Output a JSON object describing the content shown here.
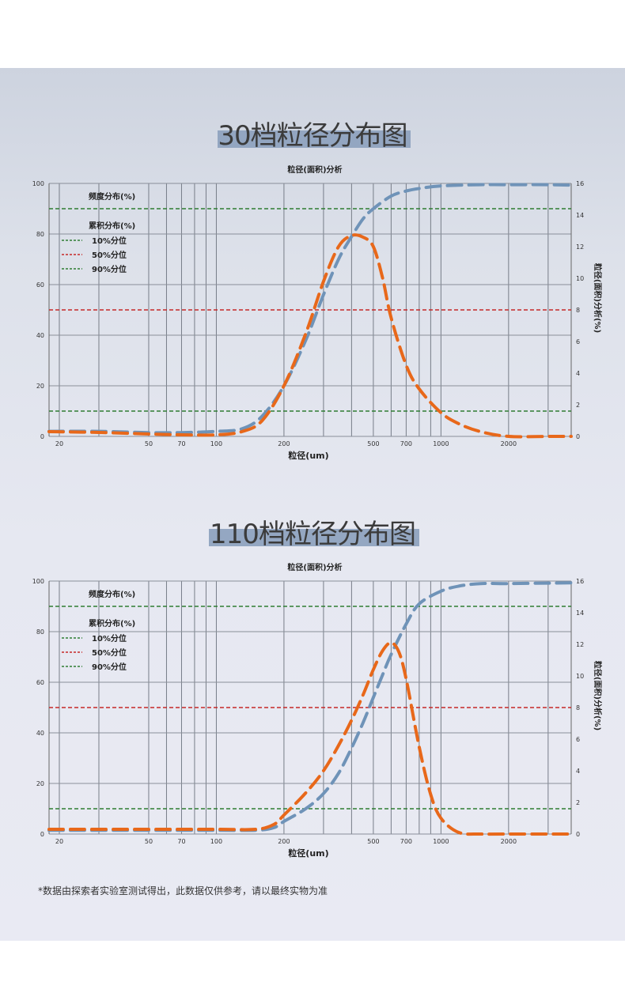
{
  "sections": [
    {
      "title": "30档粒径分布图",
      "chart_data": {
        "type": "line",
        "title": "粒径(面积)分析",
        "xlabel": "粒径(um)",
        "ylabel_right": "粒径(面积)分析(%)",
        "x_scale": "log",
        "x_range": [
          18,
          3800
        ],
        "x_ticks": [
          20,
          50,
          70,
          100,
          200,
          500,
          700,
          1000,
          2000
        ],
        "x_gridlines": [
          20,
          30,
          50,
          60,
          70,
          80,
          90,
          100,
          200,
          300,
          400,
          500,
          600,
          700,
          800,
          900,
          1000,
          2000,
          3000
        ],
        "y_left_ticks": [
          0,
          20,
          40,
          60,
          80,
          100
        ],
        "y_left_range": [
          0,
          100
        ],
        "y_right_ticks": [
          0,
          2,
          4,
          6,
          8,
          10,
          12,
          14,
          16
        ],
        "y_right_range": [
          0,
          16
        ],
        "grid": true,
        "legend": {
          "heading1": "频度分布(%)",
          "heading2": "累积分布(%)",
          "items": [
            {
              "label": "10%分位",
              "color": "#2e7d32"
            },
            {
              "label": "50%分位",
              "color": "#c62828"
            },
            {
              "label": "90%分位",
              "color": "#2e7d32"
            }
          ]
        },
        "reference_lines": [
          {
            "label": "10%分位",
            "y": 10,
            "color": "#2e7d32"
          },
          {
            "label": "50%分位",
            "y": 50,
            "color": "#c62828"
          },
          {
            "label": "90%分位",
            "y": 90,
            "color": "#2e7d32"
          }
        ],
        "series": [
          {
            "axis": "left",
            "color": "#6f93b8",
            "x": [
              18,
              30,
              50,
              70,
              100,
              130,
              160,
              200,
              250,
              300,
              350,
              400,
              450,
              500,
              600,
              700,
              800,
              1000,
              1500,
              2000,
              3000,
              3800
            ],
            "y": [
              2,
              2,
              1.5,
              1.5,
              2,
              3,
              8,
              20,
              38,
              56,
              70,
              79,
              86,
              90,
              95,
              97,
              98,
              99,
              99.5,
              99.5,
              99.5,
              99.3
            ]
          },
          {
            "axis": "right",
            "color": "#e8681a",
            "x": [
              18,
              30,
              50,
              70,
              100,
              130,
              160,
              200,
              250,
              300,
              350,
              400,
              450,
              500,
              550,
              600,
              700,
              800,
              1000,
              1200,
              1500,
              2000,
              3000,
              3800
            ],
            "y": [
              0.3,
              0.25,
              0.15,
              0.1,
              0.1,
              0.3,
              1,
              3.2,
              6.5,
              9.8,
              12,
              12.7,
              12.6,
              12,
              10,
              7.5,
              4.5,
              3,
              1.5,
              0.8,
              0.3,
              0,
              0,
              0
            ]
          }
        ]
      }
    },
    {
      "title": "110档粒径分布图",
      "chart_data": {
        "type": "line",
        "title": "粒径(面积)分析",
        "xlabel": "粒径(um)",
        "ylabel_right": "粒径(面积)分析(%)",
        "x_scale": "log",
        "x_range": [
          18,
          3800
        ],
        "x_ticks": [
          20,
          50,
          70,
          100,
          200,
          500,
          700,
          1000,
          2000
        ],
        "x_gridlines": [
          20,
          30,
          50,
          60,
          70,
          80,
          90,
          100,
          200,
          300,
          400,
          500,
          600,
          700,
          800,
          900,
          1000,
          2000,
          3000
        ],
        "y_left_ticks": [
          0,
          20,
          40,
          60,
          80,
          100
        ],
        "y_left_range": [
          0,
          100
        ],
        "y_right_ticks": [
          0,
          2,
          4,
          6,
          8,
          10,
          12,
          14,
          16
        ],
        "y_right_range": [
          0,
          16
        ],
        "grid": true,
        "legend": {
          "heading1": "频度分布(%)",
          "heading2": "累积分布(%)",
          "items": [
            {
              "label": "10%分位",
              "color": "#2e7d32"
            },
            {
              "label": "50%分位",
              "color": "#c62828"
            },
            {
              "label": "90%分位",
              "color": "#2e7d32"
            }
          ]
        },
        "reference_lines": [
          {
            "label": "10%分位",
            "y": 10,
            "color": "#2e7d32"
          },
          {
            "label": "50%分位",
            "y": 50,
            "color": "#c62828"
          },
          {
            "label": "90%分位",
            "y": 90,
            "color": "#2e7d32"
          }
        ],
        "series": [
          {
            "axis": "left",
            "color": "#6f93b8",
            "x": [
              18,
              50,
              100,
              150,
              180,
              200,
              250,
              300,
              350,
              400,
              450,
              500,
              550,
              600,
              700,
              800,
              1000,
              1200,
              1500,
              2000,
              3000,
              3800
            ],
            "y": [
              1.5,
              1.5,
              1.5,
              1.5,
              2.5,
              5,
              10,
              16,
              24,
              34,
              44,
              54,
              63,
              71,
              83,
              91,
              96,
              98,
              99,
              99,
              99.2,
              99.3
            ]
          },
          {
            "axis": "right",
            "color": "#e8681a",
            "x": [
              18,
              50,
              100,
              150,
              180,
              200,
              250,
              300,
              350,
              400,
              450,
              500,
              550,
              600,
              650,
              700,
              800,
              900,
              1000,
              1200,
              1500,
              2000,
              3000,
              3800
            ],
            "y": [
              0.3,
              0.3,
              0.3,
              0.3,
              0.6,
              1.2,
              2.6,
              4,
              5.6,
              7.2,
              8.8,
              10.4,
              11.6,
              12.1,
              11.5,
              9.8,
              5.5,
              2.5,
              1,
              0.1,
              0,
              0,
              0,
              0
            ]
          }
        ]
      }
    }
  ],
  "footnote": "*数据由探索者实验室测试得出，此数据仅供参考，请以最终实物为准"
}
